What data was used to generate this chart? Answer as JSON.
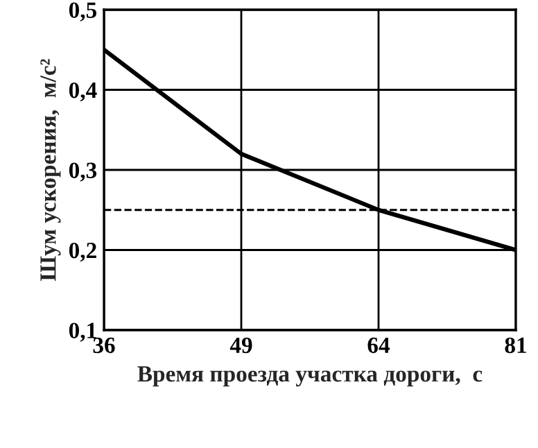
{
  "chart_data": {
    "type": "line",
    "xlabel": "Время проезда участка дороги,  с",
    "ylabel": "Шум ускорения,  м/с²",
    "categories": [
      "36",
      "49",
      "64",
      "81"
    ],
    "series": [
      {
        "color": "#000000",
        "values": [
          0.45,
          0.32,
          0.25,
          0.2
        ]
      }
    ],
    "ylim": [
      0.1,
      0.5
    ],
    "yticks": [
      {
        "value": 0.1,
        "label": "0,1"
      },
      {
        "value": 0.2,
        "label": "0,2"
      },
      {
        "value": 0.3,
        "label": "0,3"
      },
      {
        "value": 0.4,
        "label": "0,4"
      },
      {
        "value": 0.5,
        "label": "0,5"
      }
    ],
    "ref_lines": [
      {
        "axis": "y",
        "value": 0.25,
        "color": "#000000",
        "line_style": "dashed"
      }
    ],
    "grid": true,
    "marker": "none",
    "line_style": "solid",
    "legend": false
  }
}
